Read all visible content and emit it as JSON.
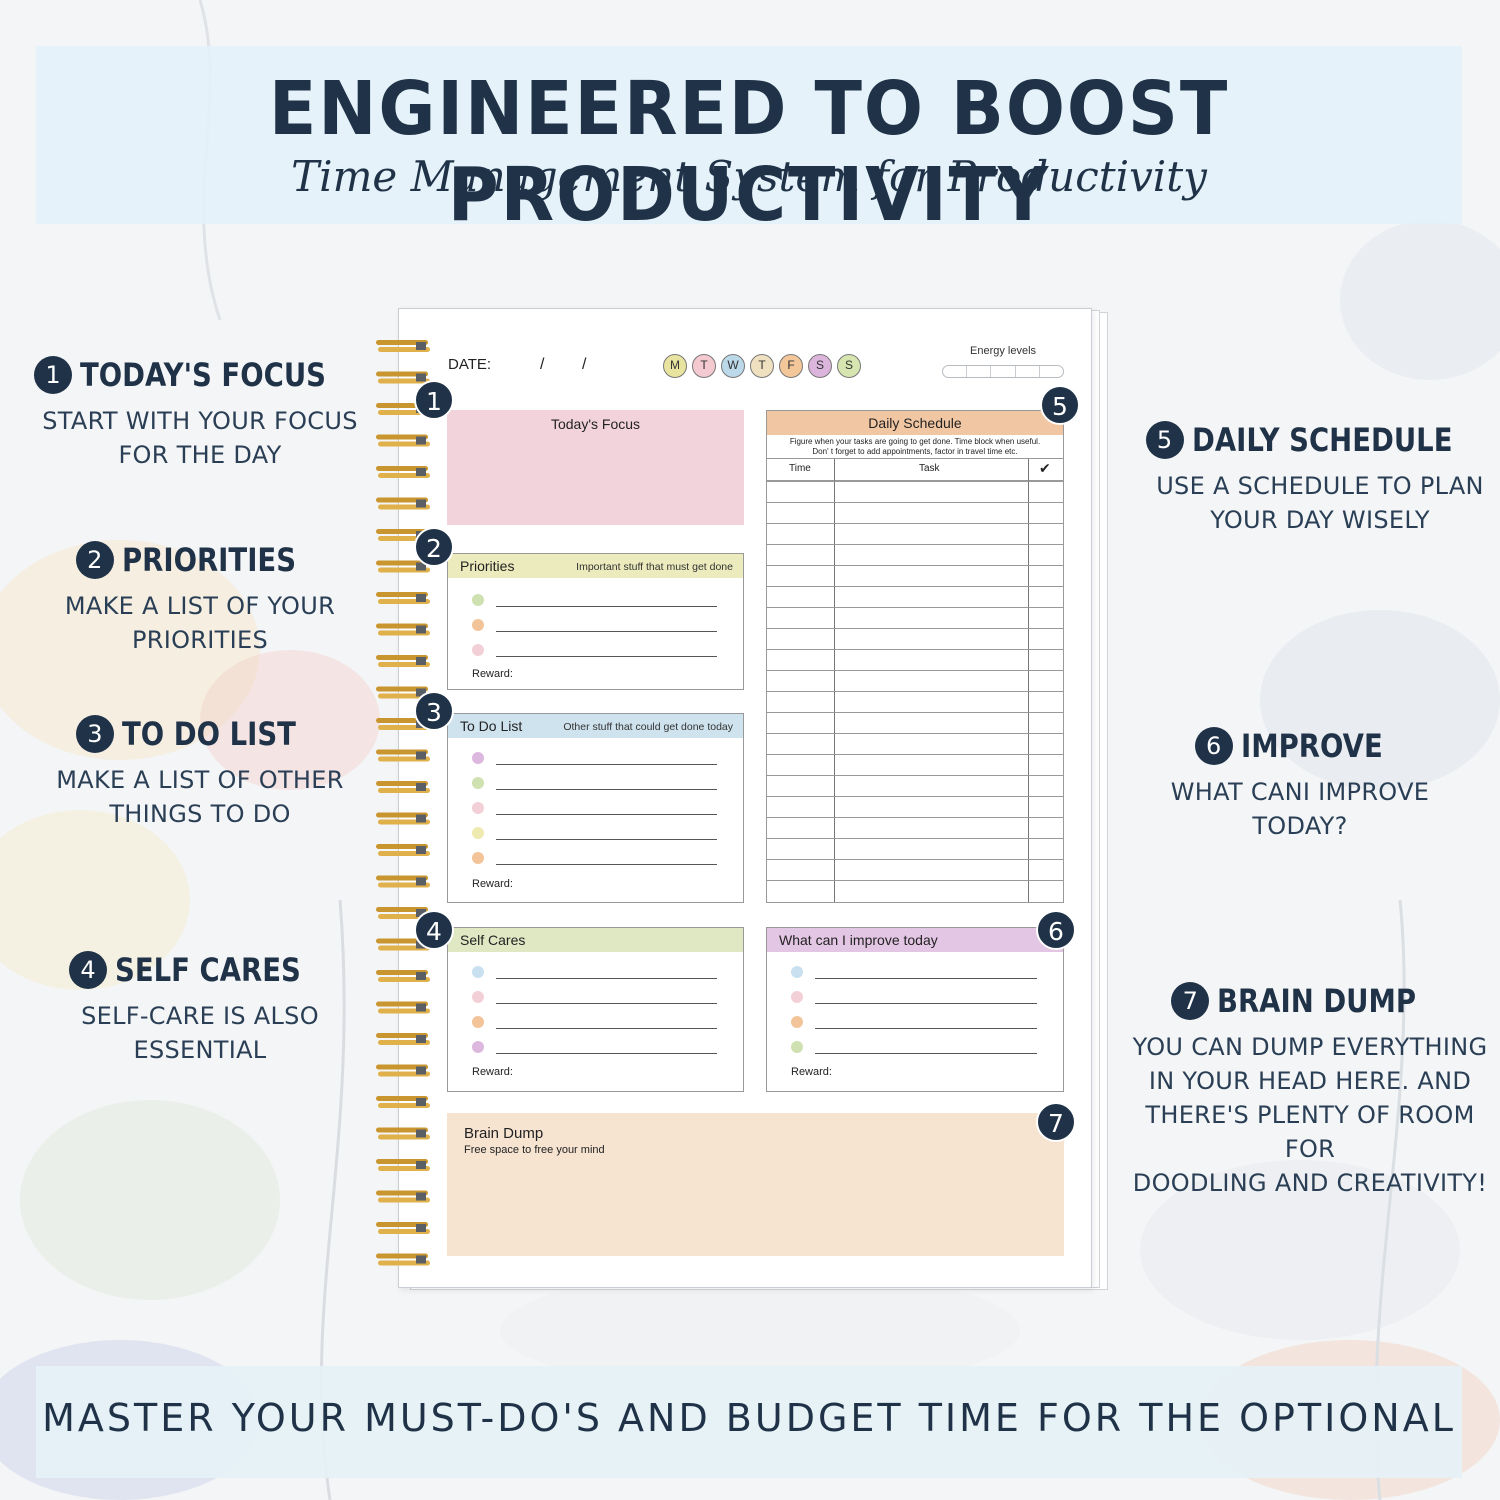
{
  "header": {
    "title": "ENGINEERED TO BOOST PRODUCTIVITY",
    "subtitle": "Time Management System for Productivity"
  },
  "footer": {
    "tagline": "MASTER YOUR MUST-DO'S AND BUDGET TIME FOR THE OPTIONAL"
  },
  "features": [
    {
      "num": "1",
      "title": "TODAY'S FOCUS",
      "desc1": "START WITH YOUR FOCUS",
      "desc2": "FOR THE DAY"
    },
    {
      "num": "2",
      "title": "PRIORITIES",
      "desc1": "MAKE A LIST OF YOUR",
      "desc2": "PRIORITIES"
    },
    {
      "num": "3",
      "title": "TO DO LIST",
      "desc1": "MAKE A LIST OF OTHER",
      "desc2": "THINGS TO DO"
    },
    {
      "num": "4",
      "title": "SELF CARES",
      "desc1": "SELF-CARE IS ALSO",
      "desc2": "ESSENTIAL"
    },
    {
      "num": "5",
      "title": "DAILY SCHEDULE",
      "desc1": "USE A SCHEDULE TO PLAN",
      "desc2": "YOUR DAY WISELY"
    },
    {
      "num": "6",
      "title": "IMPROVE",
      "desc1": "WHAT CANI IMPROVE",
      "desc2": "TODAY?"
    },
    {
      "num": "7",
      "title": "BRAIN DUMP",
      "desc1": "YOU CAN DUMP EVERYTHING",
      "desc2": "IN YOUR HEAD HERE. AND",
      "desc3": "THERE'S PLENTY OF ROOM FOR",
      "desc4": "DOODLING AND CREATIVITY!"
    }
  ],
  "planner": {
    "date_label": "DATE:",
    "date_sep": "/",
    "days": [
      "M",
      "T",
      "W",
      "T",
      "F",
      "S",
      "S"
    ],
    "day_colors": [
      "#e9e3a0",
      "#f4c9cf",
      "#bcd9ea",
      "#efe1c0",
      "#f3c79a",
      "#dcb5dc",
      "#d7e6b0"
    ],
    "energy_label": "Energy levels",
    "focus": {
      "title": "Today's Focus",
      "color": "#f2d3dc"
    },
    "priorities": {
      "title": "Priorities",
      "note": "Important stuff that must get done",
      "color": "#ecebbd",
      "dots": [
        "#cfe1b0",
        "#f3c49a",
        "#f3cfd8"
      ],
      "reward": "Reward:"
    },
    "todo": {
      "title": "To Do List",
      "note": "Other stuff that could get done today",
      "color": "#cfe3ee",
      "dots": [
        "#ddb8de",
        "#cfe1b0",
        "#f3cfd8",
        "#efeab0",
        "#f3c49a"
      ],
      "reward": "Reward:"
    },
    "selfcare": {
      "title": "Self Cares",
      "color": "#dfe8c3",
      "dots": [
        "#c8e0ef",
        "#f3cfd8",
        "#f3c49a",
        "#ddb8de"
      ],
      "reward": "Reward:"
    },
    "improve": {
      "title": "What  can I  improve  today",
      "color": "#e3c6e3",
      "dots": [
        "#c8e0ef",
        "#f3cfd8",
        "#f3c49a",
        "#cfe1b0"
      ],
      "reward": "Reward:"
    },
    "schedule": {
      "title": "Daily Schedule",
      "note1": "Figure when your tasks are going to get done.  Time block when useful.",
      "note2": "Don' t forget to add appointments, factor in travel time etc.",
      "col_time": "Time",
      "col_task": "Task",
      "col_check": "✔"
    },
    "brain_dump": {
      "title": "Brain Dump",
      "note": "Free space to free your mind",
      "color": "#f6e4d1"
    },
    "callouts": [
      "1",
      "2",
      "3",
      "4",
      "5",
      "6",
      "7"
    ]
  }
}
